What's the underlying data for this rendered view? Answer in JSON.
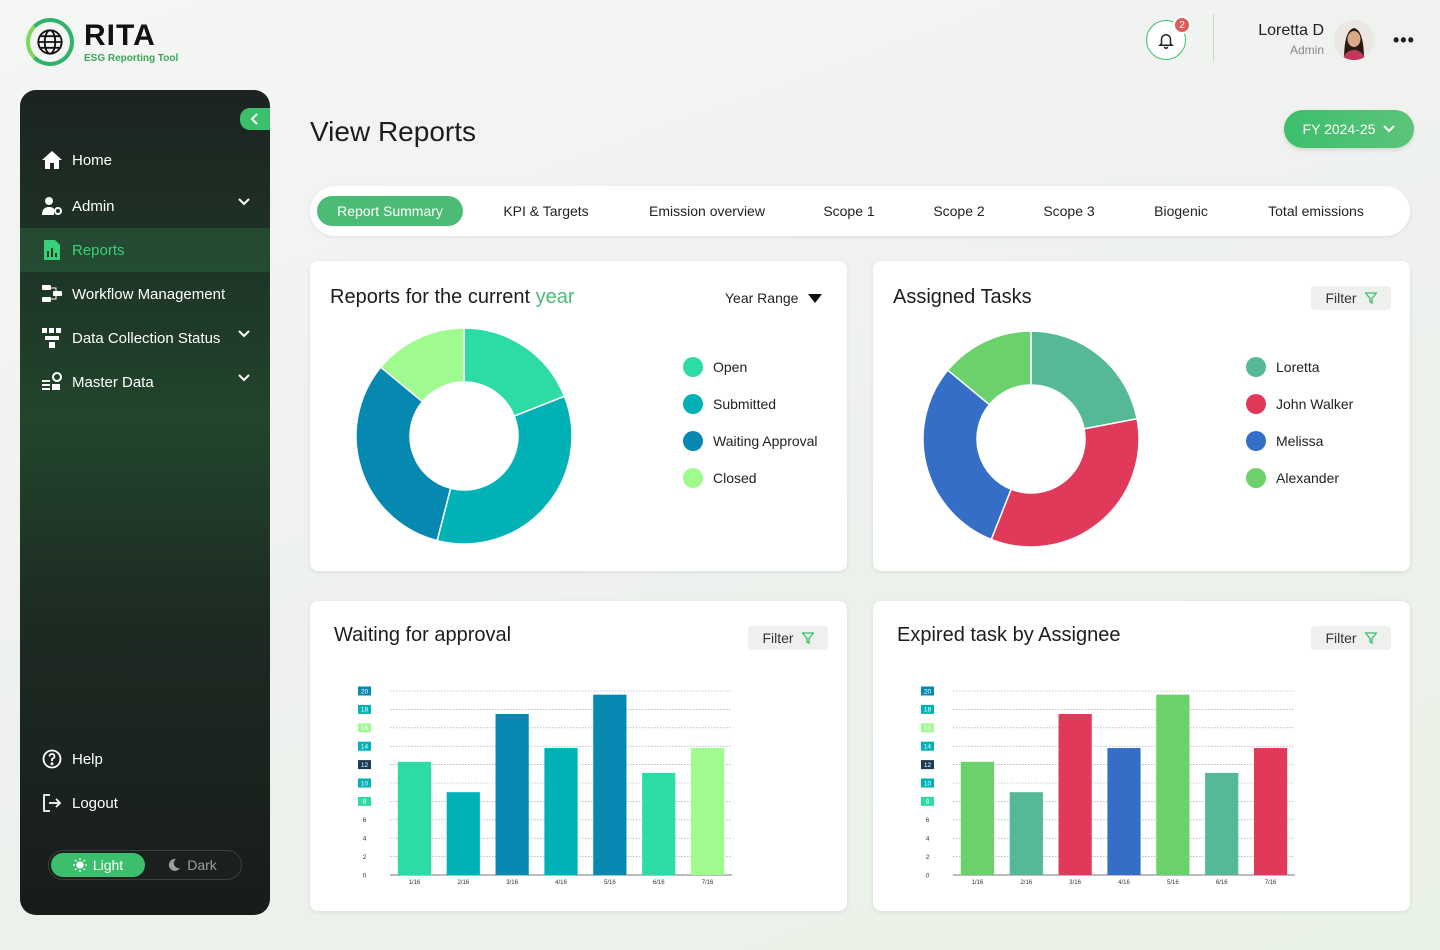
{
  "brand": {
    "name": "RITA",
    "tagline": "ESG Reporting Tool"
  },
  "header": {
    "notifications_count": "2",
    "user_name": "Loretta D",
    "user_role": "Admin"
  },
  "sidebar": {
    "items": [
      {
        "label": "Home",
        "icon": "home-icon"
      },
      {
        "label": "Admin",
        "icon": "user-gear-icon",
        "expandable": true
      },
      {
        "label": "Reports",
        "icon": "report-icon",
        "active": true
      },
      {
        "label": "Workflow Management",
        "icon": "workflow-icon"
      },
      {
        "label": "Data Collection Status",
        "icon": "data-collection-icon",
        "expandable": true
      },
      {
        "label": "Master Data",
        "icon": "master-data-icon",
        "expandable": true
      }
    ],
    "help_label": "Help",
    "logout_label": "Logout",
    "theme": {
      "light_label": "Light",
      "dark_label": "Dark",
      "selected": "Light"
    }
  },
  "page": {
    "title": "View Reports",
    "fiscal_year": "FY 2024-25"
  },
  "tabs": [
    {
      "label": "Report Summary",
      "active": true
    },
    {
      "label": "KPI  & Targets"
    },
    {
      "label": "Emission overview"
    },
    {
      "label": "Scope 1"
    },
    {
      "label": "Scope 2"
    },
    {
      "label": "Scope 3"
    },
    {
      "label": "Biogenic"
    },
    {
      "label": "Total emissions"
    }
  ],
  "cards": {
    "reports": {
      "title_prefix": "Reports for the current ",
      "title_highlight": "year",
      "range_label": "Year Range"
    },
    "assigned": {
      "title": "Assigned Tasks",
      "filter_label": "Filter"
    },
    "waiting": {
      "title": "Waiting for approval",
      "filter_label": "Filter"
    },
    "expired": {
      "title": "Expired task by Assignee",
      "filter_label": "Filter"
    }
  },
  "colors": {
    "accent": "#3cbf6c",
    "open": "#2ddba6",
    "submitted": "#00b2b5",
    "waiting_approval": "#0788b0",
    "closed": "#a0fb8e",
    "loretta": "#55b995",
    "john_walker": "#e0395a",
    "melissa": "#356ec6",
    "alexander": "#6bd16b"
  },
  "chart_data": [
    {
      "type": "pie",
      "variant": "donut",
      "categories": [
        "Open",
        "Submitted",
        "Waiting Approval",
        "Closed"
      ],
      "values": [
        19,
        35,
        32,
        14
      ],
      "colors": [
        "#2ddba6",
        "#00b2b5",
        "#0788b0",
        "#a0fb8e"
      ],
      "legend": "right"
    },
    {
      "type": "pie",
      "variant": "donut",
      "categories": [
        "Loretta",
        "John Walker",
        "Melissa",
        "Alexander"
      ],
      "values": [
        22,
        34,
        30,
        14
      ],
      "colors": [
        "#55b995",
        "#e0395a",
        "#356ec6",
        "#6bd16b"
      ],
      "legend": "right"
    },
    {
      "type": "bar",
      "categories": [
        "1/16",
        "2/16",
        "3/16",
        "4/16",
        "5/16",
        "6/16",
        "7/16"
      ],
      "values": [
        12.3,
        9,
        17.5,
        13.8,
        19.6,
        11.1,
        13.8
      ],
      "colors": [
        "#2ddba6",
        "#00b2b5",
        "#0788b0",
        "#00b2b5",
        "#0788b0",
        "#2ddba6",
        "#a0fb8e"
      ],
      "yticks": [
        0,
        2,
        4,
        6,
        8,
        10,
        12,
        14,
        16,
        18,
        20
      ],
      "ylim": [
        0,
        20
      ],
      "grid": true
    },
    {
      "type": "bar",
      "categories": [
        "1/16",
        "2/16",
        "3/16",
        "4/16",
        "5/16",
        "6/16",
        "7/16"
      ],
      "values": [
        12.3,
        9,
        17.5,
        13.8,
        19.6,
        11.1,
        13.8
      ],
      "colors": [
        "#6bd16b",
        "#55b995",
        "#e0395a",
        "#356ec6",
        "#6bd16b",
        "#55b995",
        "#e0395a"
      ],
      "yticks": [
        0,
        2,
        4,
        6,
        8,
        10,
        12,
        14,
        16,
        18,
        20
      ],
      "ylim": [
        0,
        20
      ],
      "grid": true
    }
  ]
}
